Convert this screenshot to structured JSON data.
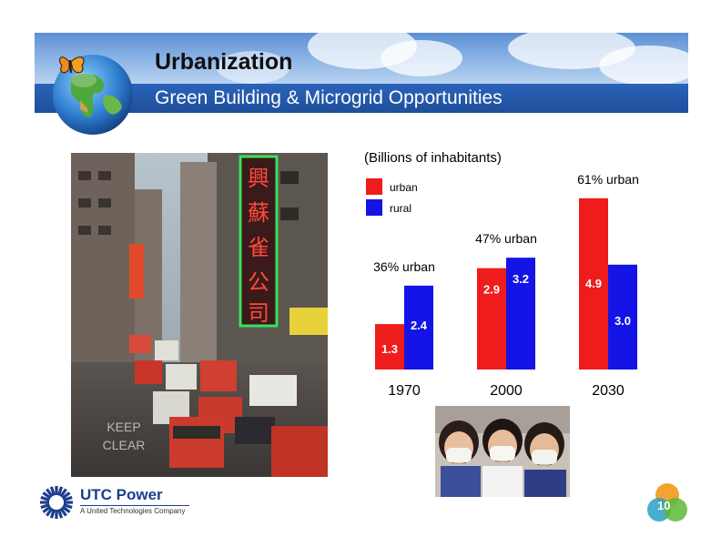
{
  "header": {
    "title": "Urbanization",
    "subtitle": "Green Building & Microgrid Opportunities"
  },
  "chart_data": {
    "type": "bar",
    "title": "(Billions of inhabitants)",
    "categories": [
      "1970",
      "2000",
      "2030"
    ],
    "series": [
      {
        "name": "urban",
        "color": "#ee1c1c",
        "values": [
          1.3,
          2.9,
          4.9
        ]
      },
      {
        "name": "rural",
        "color": "#1414e6",
        "values": [
          2.4,
          3.2,
          3.0
        ]
      }
    ],
    "value_labels": {
      "urban": [
        "1.3",
        "2.9",
        "4.9"
      ],
      "rural": [
        "2.4",
        "3.2",
        "3.0"
      ]
    },
    "annotations": [
      "36% urban",
      "47% urban",
      "61% urban"
    ],
    "legend_position": "top-left",
    "ylim": [
      0,
      4.9
    ],
    "grid": false
  },
  "photos": {
    "street_sign_text": "KEEP CLEAR",
    "street_sign_glyphs": "興 蘇 雀 公 司"
  },
  "footer": {
    "company": "UTC Power",
    "tagline": "A United Technologies Company",
    "page_number": "10"
  }
}
